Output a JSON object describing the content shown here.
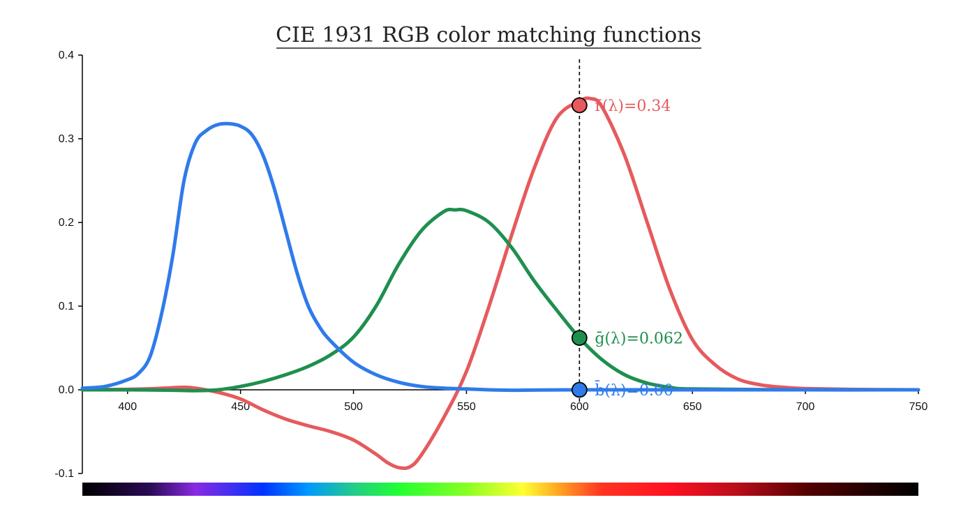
{
  "chart_data": {
    "type": "line",
    "title": "CIE 1931 RGB color matching functions",
    "xlabel": "",
    "ylabel": "",
    "xlim": [
      380,
      750
    ],
    "ylim": [
      -0.1,
      0.4
    ],
    "x_ticks": [
      400,
      450,
      500,
      550,
      600,
      650,
      700,
      750
    ],
    "y_ticks": [
      -0.1,
      0.0,
      0.1,
      0.2,
      0.3,
      0.4
    ],
    "x_tick_labels": [
      "400",
      "450",
      "500",
      "550",
      "600",
      "650",
      "700",
      "750"
    ],
    "y_tick_labels": [
      "-0.1",
      "0.0",
      "0.1",
      "0.2",
      "0.3",
      "0.4"
    ],
    "cursor_x": 600,
    "series": [
      {
        "name": "r",
        "color": "#e65a5d",
        "x": [
          380,
          390,
          400,
          410,
          420,
          425,
          430,
          440,
          450,
          460,
          470,
          480,
          490,
          500,
          510,
          515,
          520,
          525,
          530,
          540,
          550,
          560,
          570,
          580,
          590,
          600,
          605,
          610,
          620,
          630,
          640,
          650,
          660,
          670,
          680,
          690,
          700,
          720,
          750
        ],
        "y": [
          0.0,
          0.0003,
          0.0005,
          0.0012,
          0.0025,
          0.003,
          0.002,
          -0.003,
          -0.011,
          -0.024,
          -0.035,
          -0.043,
          -0.05,
          -0.06,
          -0.077,
          -0.087,
          -0.093,
          -0.092,
          -0.078,
          -0.033,
          0.022,
          0.1,
          0.185,
          0.265,
          0.325,
          0.345,
          0.348,
          0.338,
          0.28,
          0.2,
          0.12,
          0.06,
          0.03,
          0.013,
          0.006,
          0.003,
          0.0015,
          0.0005,
          0.0
        ]
      },
      {
        "name": "g",
        "color": "#1f8f4e",
        "x": [
          380,
          400,
          420,
          430,
          440,
          450,
          460,
          470,
          480,
          490,
          500,
          510,
          520,
          530,
          540,
          545,
          550,
          560,
          570,
          580,
          590,
          600,
          610,
          620,
          630,
          640,
          650,
          700,
          750
        ],
        "y": [
          0.0,
          0.0,
          -0.0005,
          -0.001,
          0.0,
          0.004,
          0.01,
          0.018,
          0.028,
          0.042,
          0.063,
          0.1,
          0.15,
          0.19,
          0.213,
          0.215,
          0.214,
          0.2,
          0.17,
          0.13,
          0.095,
          0.062,
          0.036,
          0.018,
          0.008,
          0.003,
          0.001,
          0.0,
          0.0
        ]
      },
      {
        "name": "b",
        "color": "#2f7bea",
        "x": [
          380,
          390,
          400,
          405,
          410,
          415,
          420,
          425,
          430,
          435,
          440,
          445,
          450,
          455,
          460,
          465,
          470,
          475,
          480,
          485,
          490,
          500,
          510,
          520,
          530,
          540,
          550,
          560,
          570,
          580,
          600,
          650,
          750
        ],
        "y": [
          0.002,
          0.004,
          0.012,
          0.02,
          0.04,
          0.09,
          0.16,
          0.25,
          0.295,
          0.31,
          0.317,
          0.318,
          0.315,
          0.305,
          0.28,
          0.24,
          0.19,
          0.14,
          0.1,
          0.075,
          0.058,
          0.033,
          0.018,
          0.009,
          0.004,
          0.002,
          0.001,
          0.0,
          -0.0005,
          -0.0003,
          0.0,
          0.0,
          0.0
        ]
      }
    ],
    "annotations": [
      {
        "series": "r",
        "value": 0.34,
        "label": "r̄(λ)=0.34"
      },
      {
        "series": "g",
        "value": 0.062,
        "label": "ḡ(λ)=0.062"
      },
      {
        "series": "b",
        "value": 0.0,
        "label": "b̄(λ)=0.00"
      }
    ],
    "spectrum_stops": [
      {
        "wavelength": 380,
        "color": "#000000"
      },
      {
        "wavelength": 410,
        "color": "#2a0a55"
      },
      {
        "wavelength": 430,
        "color": "#8a2be2"
      },
      {
        "wavelength": 460,
        "color": "#0033ff"
      },
      {
        "wavelength": 480,
        "color": "#0099ff"
      },
      {
        "wavelength": 500,
        "color": "#22cc88"
      },
      {
        "wavelength": 520,
        "color": "#22ff33"
      },
      {
        "wavelength": 550,
        "color": "#88ff22"
      },
      {
        "wavelength": 575,
        "color": "#ffff33"
      },
      {
        "wavelength": 590,
        "color": "#ffaa22"
      },
      {
        "wavelength": 610,
        "color": "#ff3322"
      },
      {
        "wavelength": 640,
        "color": "#ff1122"
      },
      {
        "wavelength": 670,
        "color": "#b80d1a"
      },
      {
        "wavelength": 700,
        "color": "#550000"
      },
      {
        "wavelength": 730,
        "color": "#200000"
      },
      {
        "wavelength": 750,
        "color": "#000000"
      }
    ]
  }
}
